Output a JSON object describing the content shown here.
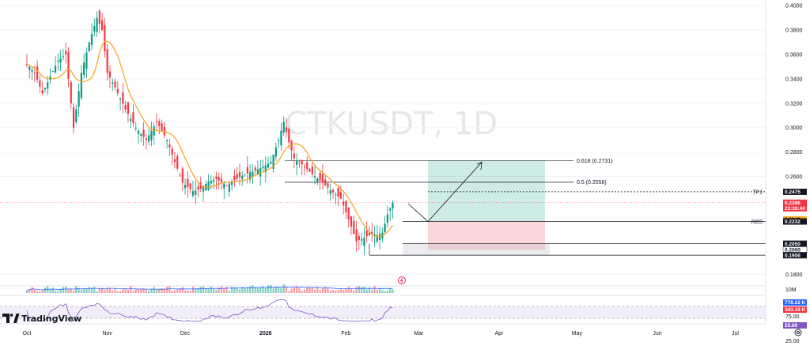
{
  "chart_data": {
    "type": "candlestick",
    "symbol_watermark": "CTKUSDT, 1D",
    "brand": "TradingView",
    "y_axis": {
      "ylim": [
        0.175,
        0.402
      ],
      "tick_labels": [
        "0.4000",
        "0.3800",
        "0.3600",
        "0.3400",
        "0.3200",
        "0.3000",
        "0.2800",
        "0.2600",
        "0.1800"
      ],
      "tick_values": [
        0.4,
        0.38,
        0.36,
        0.34,
        0.32,
        0.3,
        0.28,
        0.26,
        0.18
      ]
    },
    "x_axis": {
      "tick_labels": [
        "Oct",
        "Nov",
        "Dec",
        "2026",
        "Feb",
        "Mar",
        "Apr",
        "May",
        "Jun",
        "Jul"
      ],
      "tick_days": [
        0,
        31,
        61,
        92,
        123,
        151,
        182,
        212,
        243,
        273
      ]
    },
    "close_series_anchors": [
      [
        0,
        0.352
      ],
      [
        3,
        0.345
      ],
      [
        6,
        0.328
      ],
      [
        9,
        0.342
      ],
      [
        12,
        0.355
      ],
      [
        15,
        0.36
      ],
      [
        18,
        0.3
      ],
      [
        21,
        0.345
      ],
      [
        24,
        0.37
      ],
      [
        27,
        0.39
      ],
      [
        29,
        0.38
      ],
      [
        31,
        0.345
      ],
      [
        34,
        0.333
      ],
      [
        38,
        0.315
      ],
      [
        42,
        0.3
      ],
      [
        46,
        0.29
      ],
      [
        50,
        0.305
      ],
      [
        54,
        0.29
      ],
      [
        57,
        0.272
      ],
      [
        60,
        0.255
      ],
      [
        64,
        0.248
      ],
      [
        67,
        0.25
      ],
      [
        70,
        0.256
      ],
      [
        73,
        0.258
      ],
      [
        77,
        0.253
      ],
      [
        80,
        0.257
      ],
      [
        84,
        0.262
      ],
      [
        88,
        0.265
      ],
      [
        91,
        0.268
      ],
      [
        94,
        0.272
      ],
      [
        97,
        0.29
      ],
      [
        99,
        0.305
      ],
      [
        101,
        0.288
      ],
      [
        103,
        0.275
      ],
      [
        106,
        0.27
      ],
      [
        110,
        0.262
      ],
      [
        114,
        0.255
      ],
      [
        118,
        0.247
      ],
      [
        121,
        0.242
      ],
      [
        124,
        0.225
      ],
      [
        127,
        0.207
      ],
      [
        130,
        0.21
      ],
      [
        133,
        0.213
      ],
      [
        135,
        0.212
      ],
      [
        137,
        0.214
      ],
      [
        139,
        0.229
      ],
      [
        141,
        0.2386
      ]
    ],
    "sma": {
      "color": "#f7a21b",
      "period": 10
    },
    "rsi_value": "55.89",
    "levels": [
      {
        "label": "0.618 (0.2731)",
        "value": 0.2731
      },
      {
        "label": "0.5 (0.2556)",
        "value": 0.2556
      },
      {
        "label": "TP1",
        "value": 0.2475
      },
      {
        "label": "RBS",
        "value": 0.2232
      },
      {
        "value": 0.205
      },
      {
        "value": 0.1956
      }
    ],
    "trade": {
      "entry": 0.2232,
      "target": 0.2731,
      "stop": 0.2
    },
    "price_tags": [
      {
        "value": 0.2475,
        "text": "0.2475",
        "bg": "#131722",
        "fg": "#ffffff"
      },
      {
        "value": 0.2386,
        "text": "0.2386",
        "sub": "22:28:40",
        "bg": "#f23645",
        "fg": "#ffffff"
      },
      {
        "value": 0.2249,
        "text": "0.2249",
        "bg": "#f7a21b",
        "fg": "#131722"
      },
      {
        "value": 0.2232,
        "text": "0.2232",
        "bg": "#131722",
        "fg": "#ffffff"
      },
      {
        "value": 0.205,
        "text": "0.2050",
        "bg": "#131722",
        "fg": "#ffffff"
      },
      {
        "value": 0.2,
        "text": "0.2000",
        "bg": "#ffffff",
        "fg": "#131722"
      },
      {
        "value": 0.1956,
        "text": "0.1956",
        "bg": "#131722",
        "fg": "#ffffff"
      }
    ],
    "volume_labels": [
      {
        "text": "10M"
      },
      {
        "text": "778.22 K",
        "bg": "#2962ff",
        "fg": "#ffffff"
      },
      {
        "text": "343.19 K",
        "bg": "#f23645",
        "fg": "#ffffff"
      }
    ],
    "rsi_labels": [
      {
        "text": "75.00"
      },
      {
        "text": "55.89",
        "bg": "#7e57c2",
        "fg": "#ffffff"
      },
      {
        "text": "25.00"
      }
    ],
    "colors": {
      "up": "#089981",
      "down": "#f23645",
      "rsi": "#7e57c2",
      "volume_ma": "#2962ff"
    }
  }
}
